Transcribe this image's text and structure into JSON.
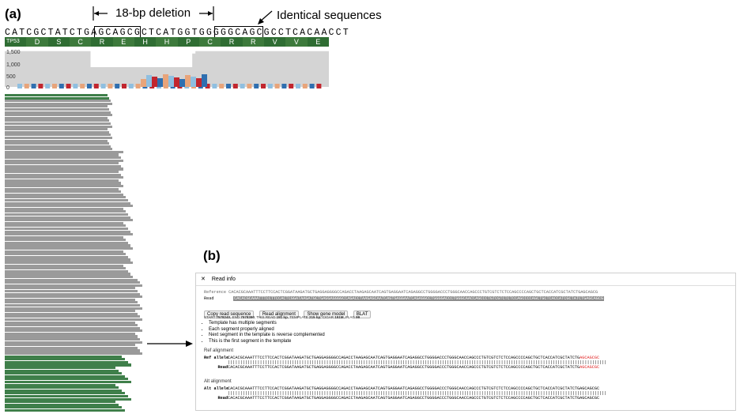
{
  "panel_a": {
    "label": "(a)",
    "deletion_label": "18-bp deletion",
    "identical_label": "Identical sequences",
    "sequence": "CATCGCTATCTGAGCAGCGCTCATGGTGGGGGCAGCGCCTCACAACCT",
    "gene_name": "TP53",
    "amino_acids": [
      "S",
      "D",
      "S",
      "C",
      "R",
      "E",
      "H",
      "H",
      "P",
      "C",
      "R",
      "R",
      "V",
      "V",
      "E"
    ],
    "aa_colors": [
      "#2f6d33",
      "#3d7a3c",
      "#2f6d33",
      "#3d7a3c",
      "#2f6d33",
      "#3d7a3c",
      "#2f6d33",
      "#3d7a3c",
      "#2f6d33",
      "#3d7a3c",
      "#2f6d33",
      "#3d7a3c",
      "#2f6d33",
      "#3d7a3c",
      "#2f6d33"
    ],
    "coverage_ticks": [
      "1,500",
      "1,000",
      "500",
      "0"
    ],
    "coverage_profile": [
      1450,
      1450,
      1450,
      1450,
      1450,
      1450,
      1450,
      1450,
      1450,
      1450,
      1450,
      1450,
      1450,
      1450,
      1450,
      1450,
      1450,
      1450,
      1450,
      1450,
      1450,
      1450,
      1450,
      1450,
      1450,
      1450,
      1450,
      800,
      800,
      800,
      800,
      800,
      800,
      800,
      800,
      800,
      800,
      800,
      800,
      800,
      800,
      800,
      800,
      800,
      800,
      800,
      800,
      800,
      800,
      800,
      800,
      800,
      800,
      800,
      800,
      800,
      800,
      800,
      800,
      1350,
      1450,
      1450,
      1450,
      1450,
      1450,
      1450,
      1450,
      1450,
      1450,
      1450,
      1450,
      1450,
      1450,
      1450,
      1450,
      1450,
      1450,
      1450,
      1450,
      1450,
      1450,
      1450,
      1450,
      1450,
      1450,
      1450,
      1450,
      1450,
      1450,
      1450,
      1450,
      1450,
      1450,
      1450,
      1450,
      1450,
      1450,
      1450,
      1450,
      1450,
      1450,
      1450
    ],
    "colors": {
      "gray_read": "#9a9a9a",
      "green_read": "#3f7f4a",
      "coverage": "#d4d4d4",
      "mm_a": "#c2262e",
      "mm_b": "#2f6fb0",
      "mm_c": "#e8a47a",
      "mm_d": "#8fbfe0"
    }
  },
  "panel_b": {
    "label": "(b)",
    "window_title": "Read info",
    "close_glyph": "✕",
    "reference_label": "Reference",
    "read_label": "Read",
    "reference_seq": "CACACGCAAATTTCCTTCCACTCGGATAAGATGCTGAGGAGGGGCCAGACCTAAGAGCAATCAGTGAGGAATCAGAGGCCTGGGGACCCTGGGCAACCAGCCCTGTCGTCTCTCCAGCCCCAGCTGCTCACCATCGCTATCTGAGCAGCG",
    "read_seq": "CACACGCAAATTTCCTTCCACTCGGATAAGATGCTGAGGAGGGGCCAGACCTAAGAGCAATCAGTGAGGAATCAGAGGCCTGGGGACCCTGGGCAACCAGCCCTGTCGTCTCTCCAGCCCCAGCTGCTCACCATCGCTATCTGAGCAGCG",
    "buttons": [
      "Copy read sequence",
      "Read alignment",
      "Show gene model",
      "BLAT"
    ],
    "stats": [
      {
        "k": "START",
        "v": "7578240"
      },
      {
        "k": "END",
        "v": "7578390"
      },
      {
        "k": "THIS READ",
        "v": "151 bp"
      },
      {
        "k": "TEMPLATE",
        "v": "215 bp"
      },
      {
        "k": "CIGAR",
        "v": "151M"
      },
      {
        "k": "FLAG",
        "v": "99"
      }
    ],
    "bullets": [
      "Template has multiple segments",
      "Each segment properly aligned",
      "Next segment in the template is reverse complemented",
      "This is the first segment in the template"
    ],
    "ref_section": "Ref alignment",
    "alt_section": "Alt alignment",
    "ref_allele_label": "Ref allele",
    "alt_allele_label": "Alt allele",
    "read_row_label": "Read",
    "ref_allele_seq": "CACACGCAAATTTCCTTCCACTCGGATAAGATGCTGAGGAGGGGCCAGACCTAAGAGCAATCAGTGAGGAATCAGAGGCCTGGGGACCCTGGGCAACCAGCCCTGTCGTCTCTCCAGCCCCAGCTGCTCACCATCGCTATCTG",
    "ref_allele_tail": "AGCAGCGC",
    "ref_read_seq": "CACACGCAAATTTCCTTCCACTCGGATAAGATGCTGAGGAGGGGCCAGACCTAAGAGCAATCAGTGAGGAATCAGAGGCCTGGGGACCCTGGGCAACCAGCCCTGTCGTCTCTCCAGCCCCAGCTGCTCACCATCGCTATCTG",
    "ref_read_tail": "AGCAGCGC",
    "alt_allele_seq": "CACACGCAAATTTCCTTCCACTCGGATAAGATGCTGAGGAGGGGCCAGACCTAAGAGCAATCAGTGAGGAATCAGAGGCCTGGGGACCCTGGGCAACCAGCCCTGTCGTCTCTCCAGCCCCAGCTGCTCACCATCGCTATCTGAGCAGCGC",
    "alt_read_seq": "CACACGCAAATTTCCTTCCACTCGGATAAGATGCTGAGGAGGGGCCAGACCTAAGAGCAATCAGTGAGGAATCAGAGGCCTGGGGACCCTGGGCAACCAGCCCTGTCGTCTCTCCAGCCCCAGCTGCTCACCATCGCTATCTGAGCAGCGC",
    "match_bars": "||||||||||||||||||||||||||||||||||||||||||||||||||||||||||||||||||||||||||||||||||||||||||||||||||||||||||||||||||||||||||||||||||||||||||||||||||||||||||"
  }
}
